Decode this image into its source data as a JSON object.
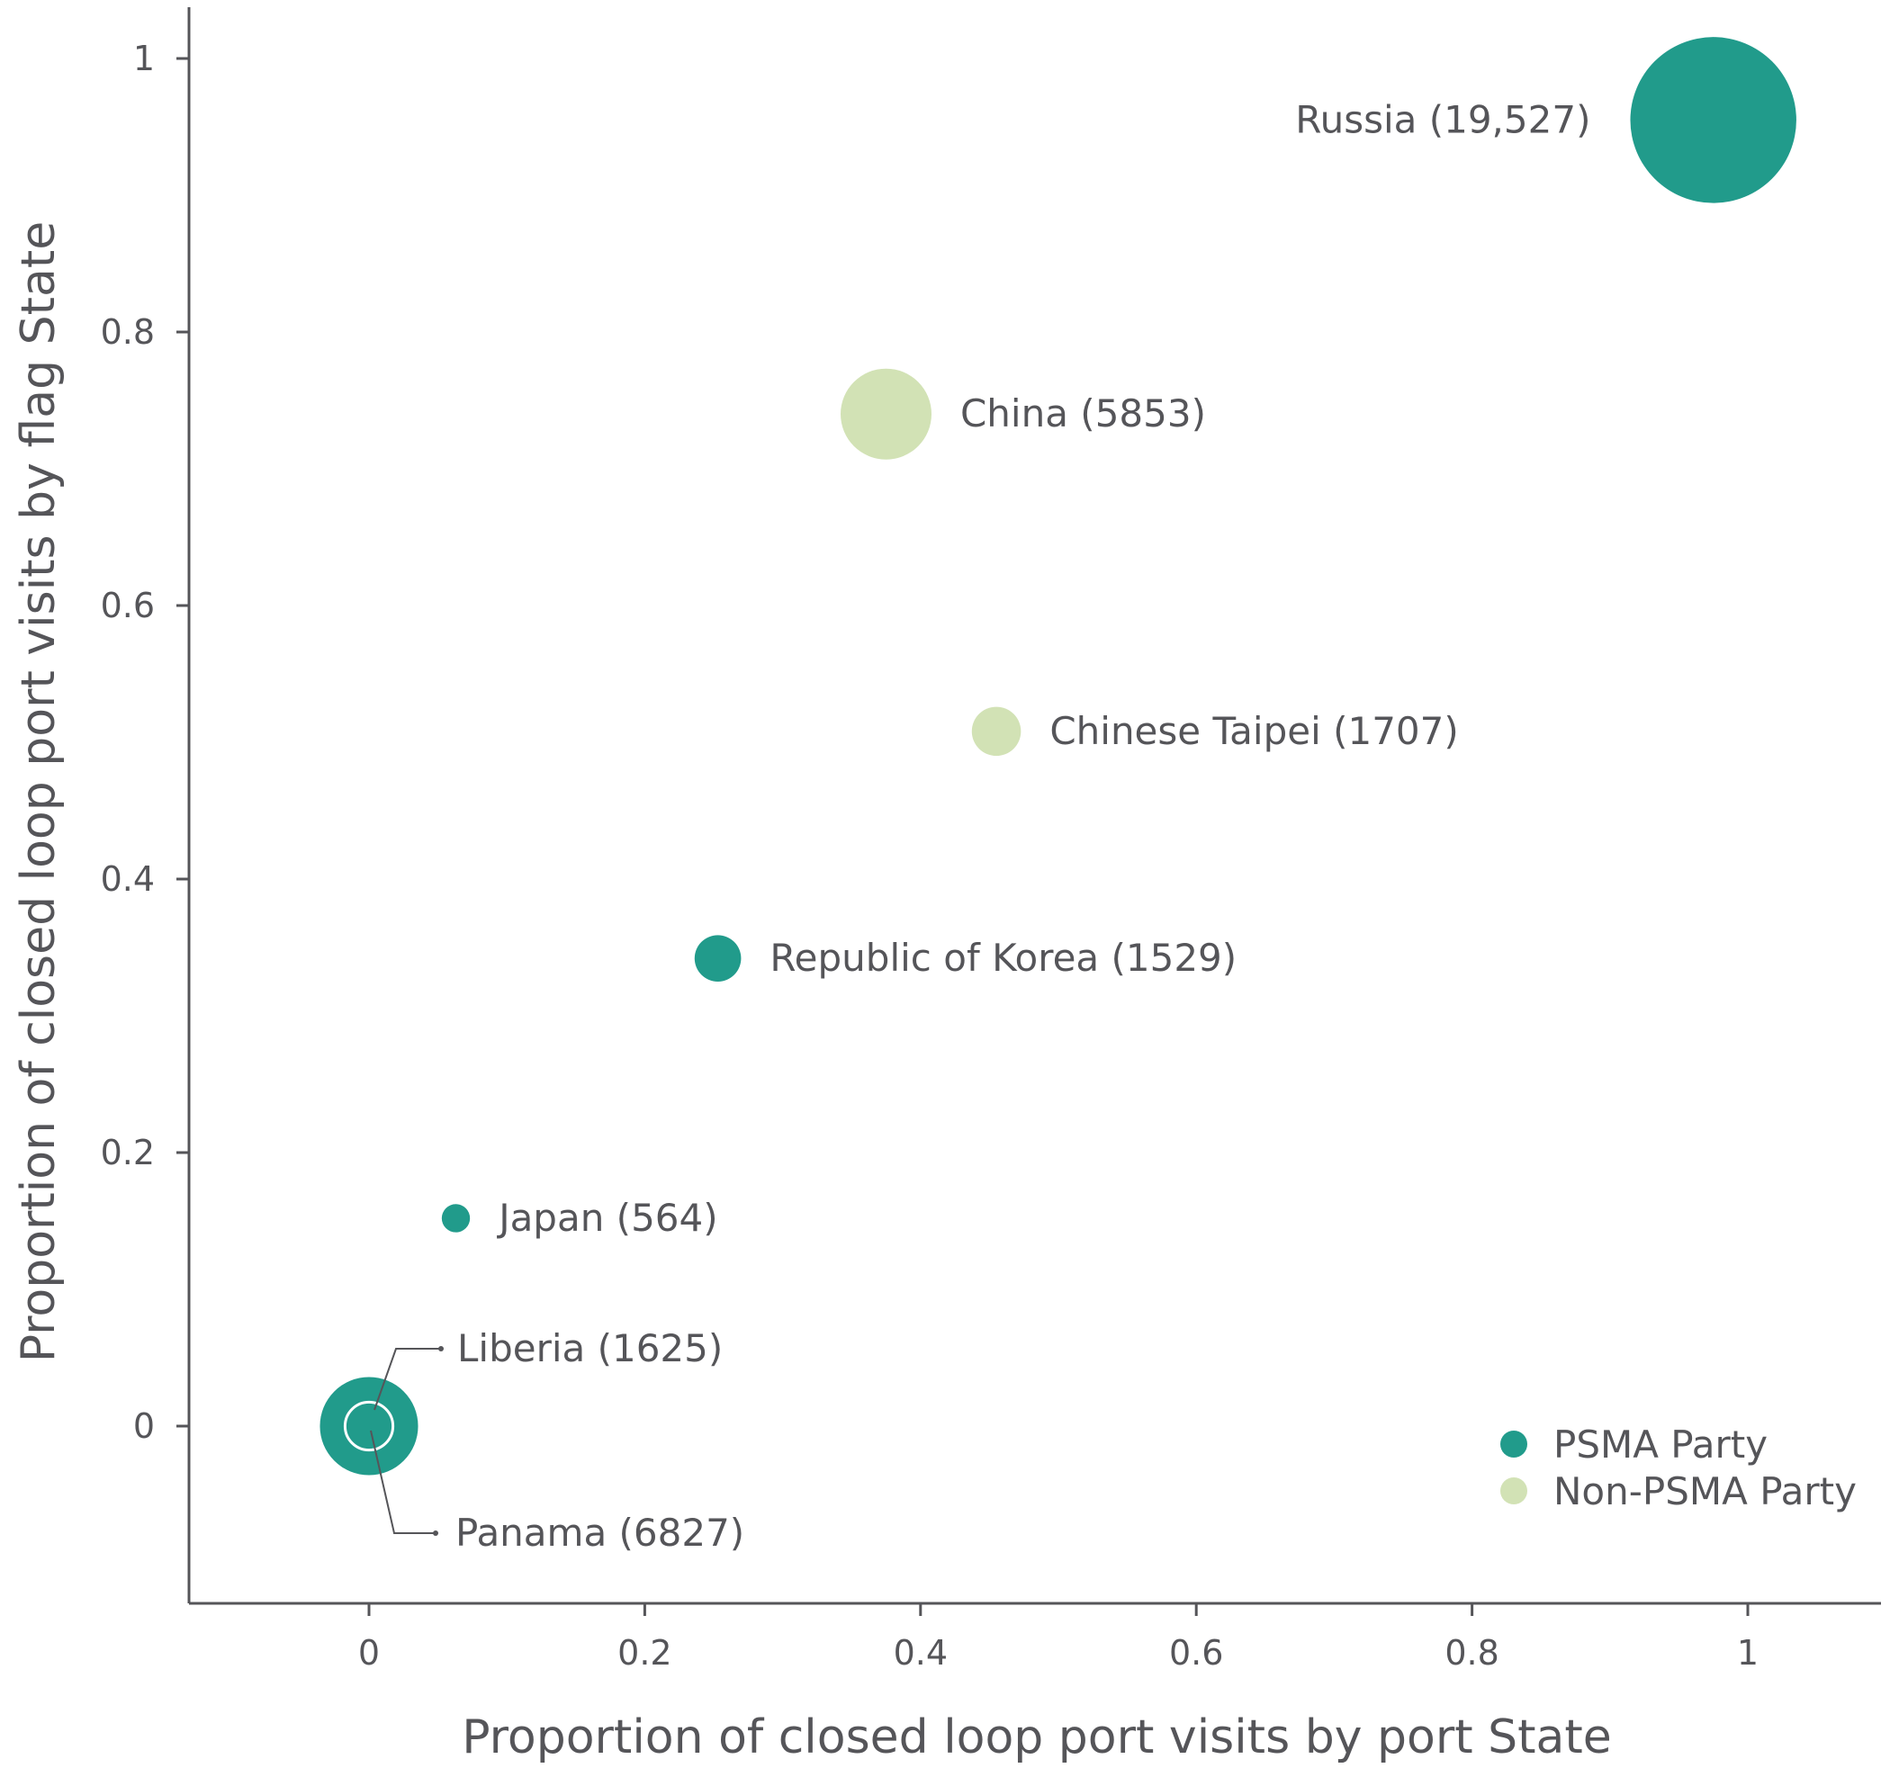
{
  "chart_data": {
    "type": "scatter",
    "title": "",
    "xlabel": "Proportion of closed loop port visits by port State",
    "ylabel": "Proportion of closed loop port visits by flag State",
    "xlim": [
      -0.13,
      1.1
    ],
    "ylim": [
      -0.125,
      1.04
    ],
    "x_ticks": [
      0,
      0.2,
      0.4,
      0.6,
      0.8,
      1
    ],
    "x_tick_labels": [
      "0",
      "0.2",
      "0.4",
      "0.6",
      "0.8",
      "1"
    ],
    "y_ticks": [
      0,
      0.2,
      0.4,
      0.6,
      0.8,
      1
    ],
    "y_tick_labels": [
      "0",
      "0.2",
      "0.4",
      "0.6",
      "0.8",
      "1"
    ],
    "grid": false,
    "size_variable": "number of closed loop port visits (in parentheses)",
    "categories_legend": [
      {
        "name": "PSMA Party",
        "color": "#219b8b"
      },
      {
        "name": "Non-PSMA Party",
        "color": "#d2e2b5"
      }
    ],
    "legend_position": "bottom-right",
    "points": [
      {
        "name": "Russia",
        "label": "Russia (19,527)",
        "x": 0.975,
        "y": 0.955,
        "size": 19527,
        "group": "PSMA Party",
        "label_side": "left"
      },
      {
        "name": "China",
        "label": "China (5853)",
        "x": 0.375,
        "y": 0.74,
        "size": 5853,
        "group": "Non-PSMA Party",
        "label_side": "right"
      },
      {
        "name": "Chinese Taipei",
        "label": "Chinese Taipei (1707)",
        "x": 0.455,
        "y": 0.508,
        "size": 1707,
        "group": "Non-PSMA Party",
        "label_side": "right"
      },
      {
        "name": "Republic of Korea",
        "label": "Republic of Korea (1529)",
        "x": 0.253,
        "y": 0.342,
        "size": 1529,
        "group": "PSMA Party",
        "label_side": "right"
      },
      {
        "name": "Japan",
        "label": "Japan (564)",
        "x": 0.063,
        "y": 0.152,
        "size": 564,
        "group": "PSMA Party",
        "label_side": "right"
      },
      {
        "name": "Panama",
        "label": "Panama (6827)",
        "x": 0.0,
        "y": 0.0,
        "size": 6827,
        "group": "PSMA Party",
        "label_side": "leader-below"
      },
      {
        "name": "Liberia",
        "label": "Liberia (1625)",
        "x": 0.0,
        "y": 0.0,
        "size": 1625,
        "group": "PSMA Party",
        "label_side": "leader-above"
      }
    ]
  }
}
